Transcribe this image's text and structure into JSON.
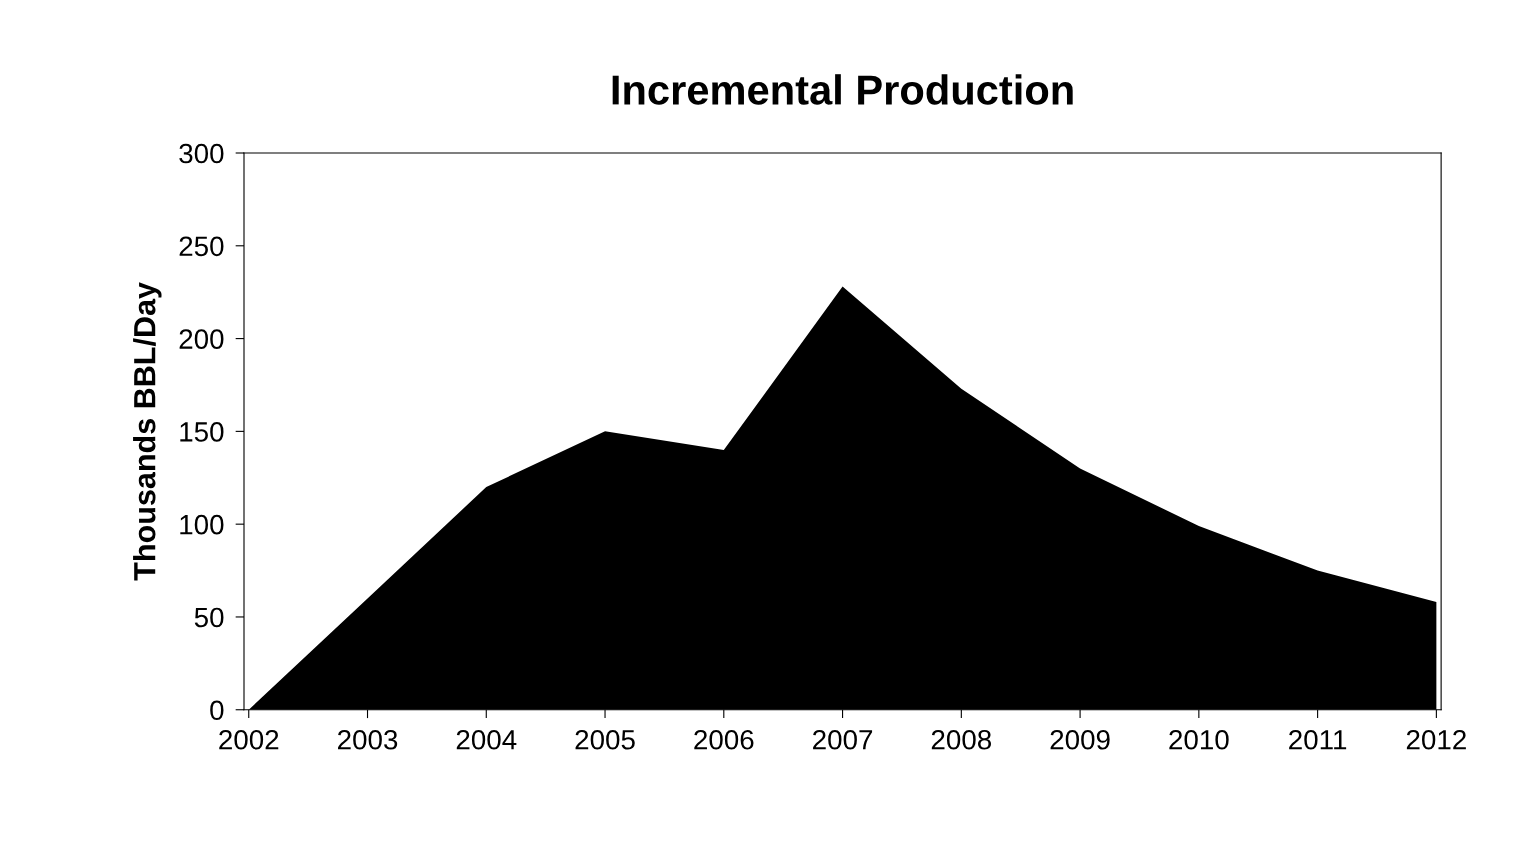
{
  "chart_data": {
    "type": "area",
    "title": "Incremental Production",
    "ylabel": "Thousands BBL/Day",
    "categories": [
      "2002",
      "2003",
      "2004",
      "2005",
      "2006",
      "2007",
      "2008",
      "2009",
      "2010",
      "2011",
      "2012"
    ],
    "series": [
      {
        "color": "#000000",
        "values": [
          0,
          60,
          120,
          150,
          140,
          228,
          173,
          130,
          99,
          75,
          58
        ]
      }
    ],
    "ylim": [
      0,
      300
    ],
    "yticks": [
      0,
      50,
      100,
      150,
      200,
      250,
      300
    ],
    "grid": false,
    "legend": false
  }
}
